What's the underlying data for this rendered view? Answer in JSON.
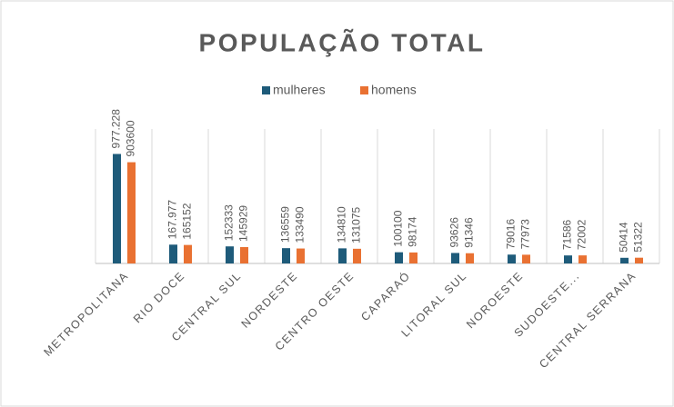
{
  "chart_data": {
    "type": "bar",
    "title": "POPULAÇÃO TOTAL",
    "categories": [
      "METROPOLITANA",
      "RIO DOCE",
      "CENTRAL SUL",
      "NORDESTE",
      "CENTRO OESTE",
      "CAPARAÓ",
      "LITORAL SUL",
      "NOROESTE",
      "SUDOESTE...",
      "CENTRAL SERRANA"
    ],
    "series": [
      {
        "name": "mulheres",
        "color": "#1e5b7a",
        "values": [
          977228,
          167977,
          152333,
          136559,
          134810,
          100100,
          93626,
          79016,
          71586,
          50414
        ],
        "value_labels": [
          "977.228",
          "167.977",
          "152333",
          "136559",
          "134810",
          "100100",
          "93626",
          "79016",
          "71586",
          "50414"
        ]
      },
      {
        "name": "homens",
        "color": "#e97132",
        "values": [
          903600,
          165152,
          145929,
          133490,
          131075,
          98174,
          91346,
          77973,
          72002,
          51322
        ]
      }
    ],
    "ylim": [
      0,
      1200000
    ],
    "legend": "top"
  }
}
